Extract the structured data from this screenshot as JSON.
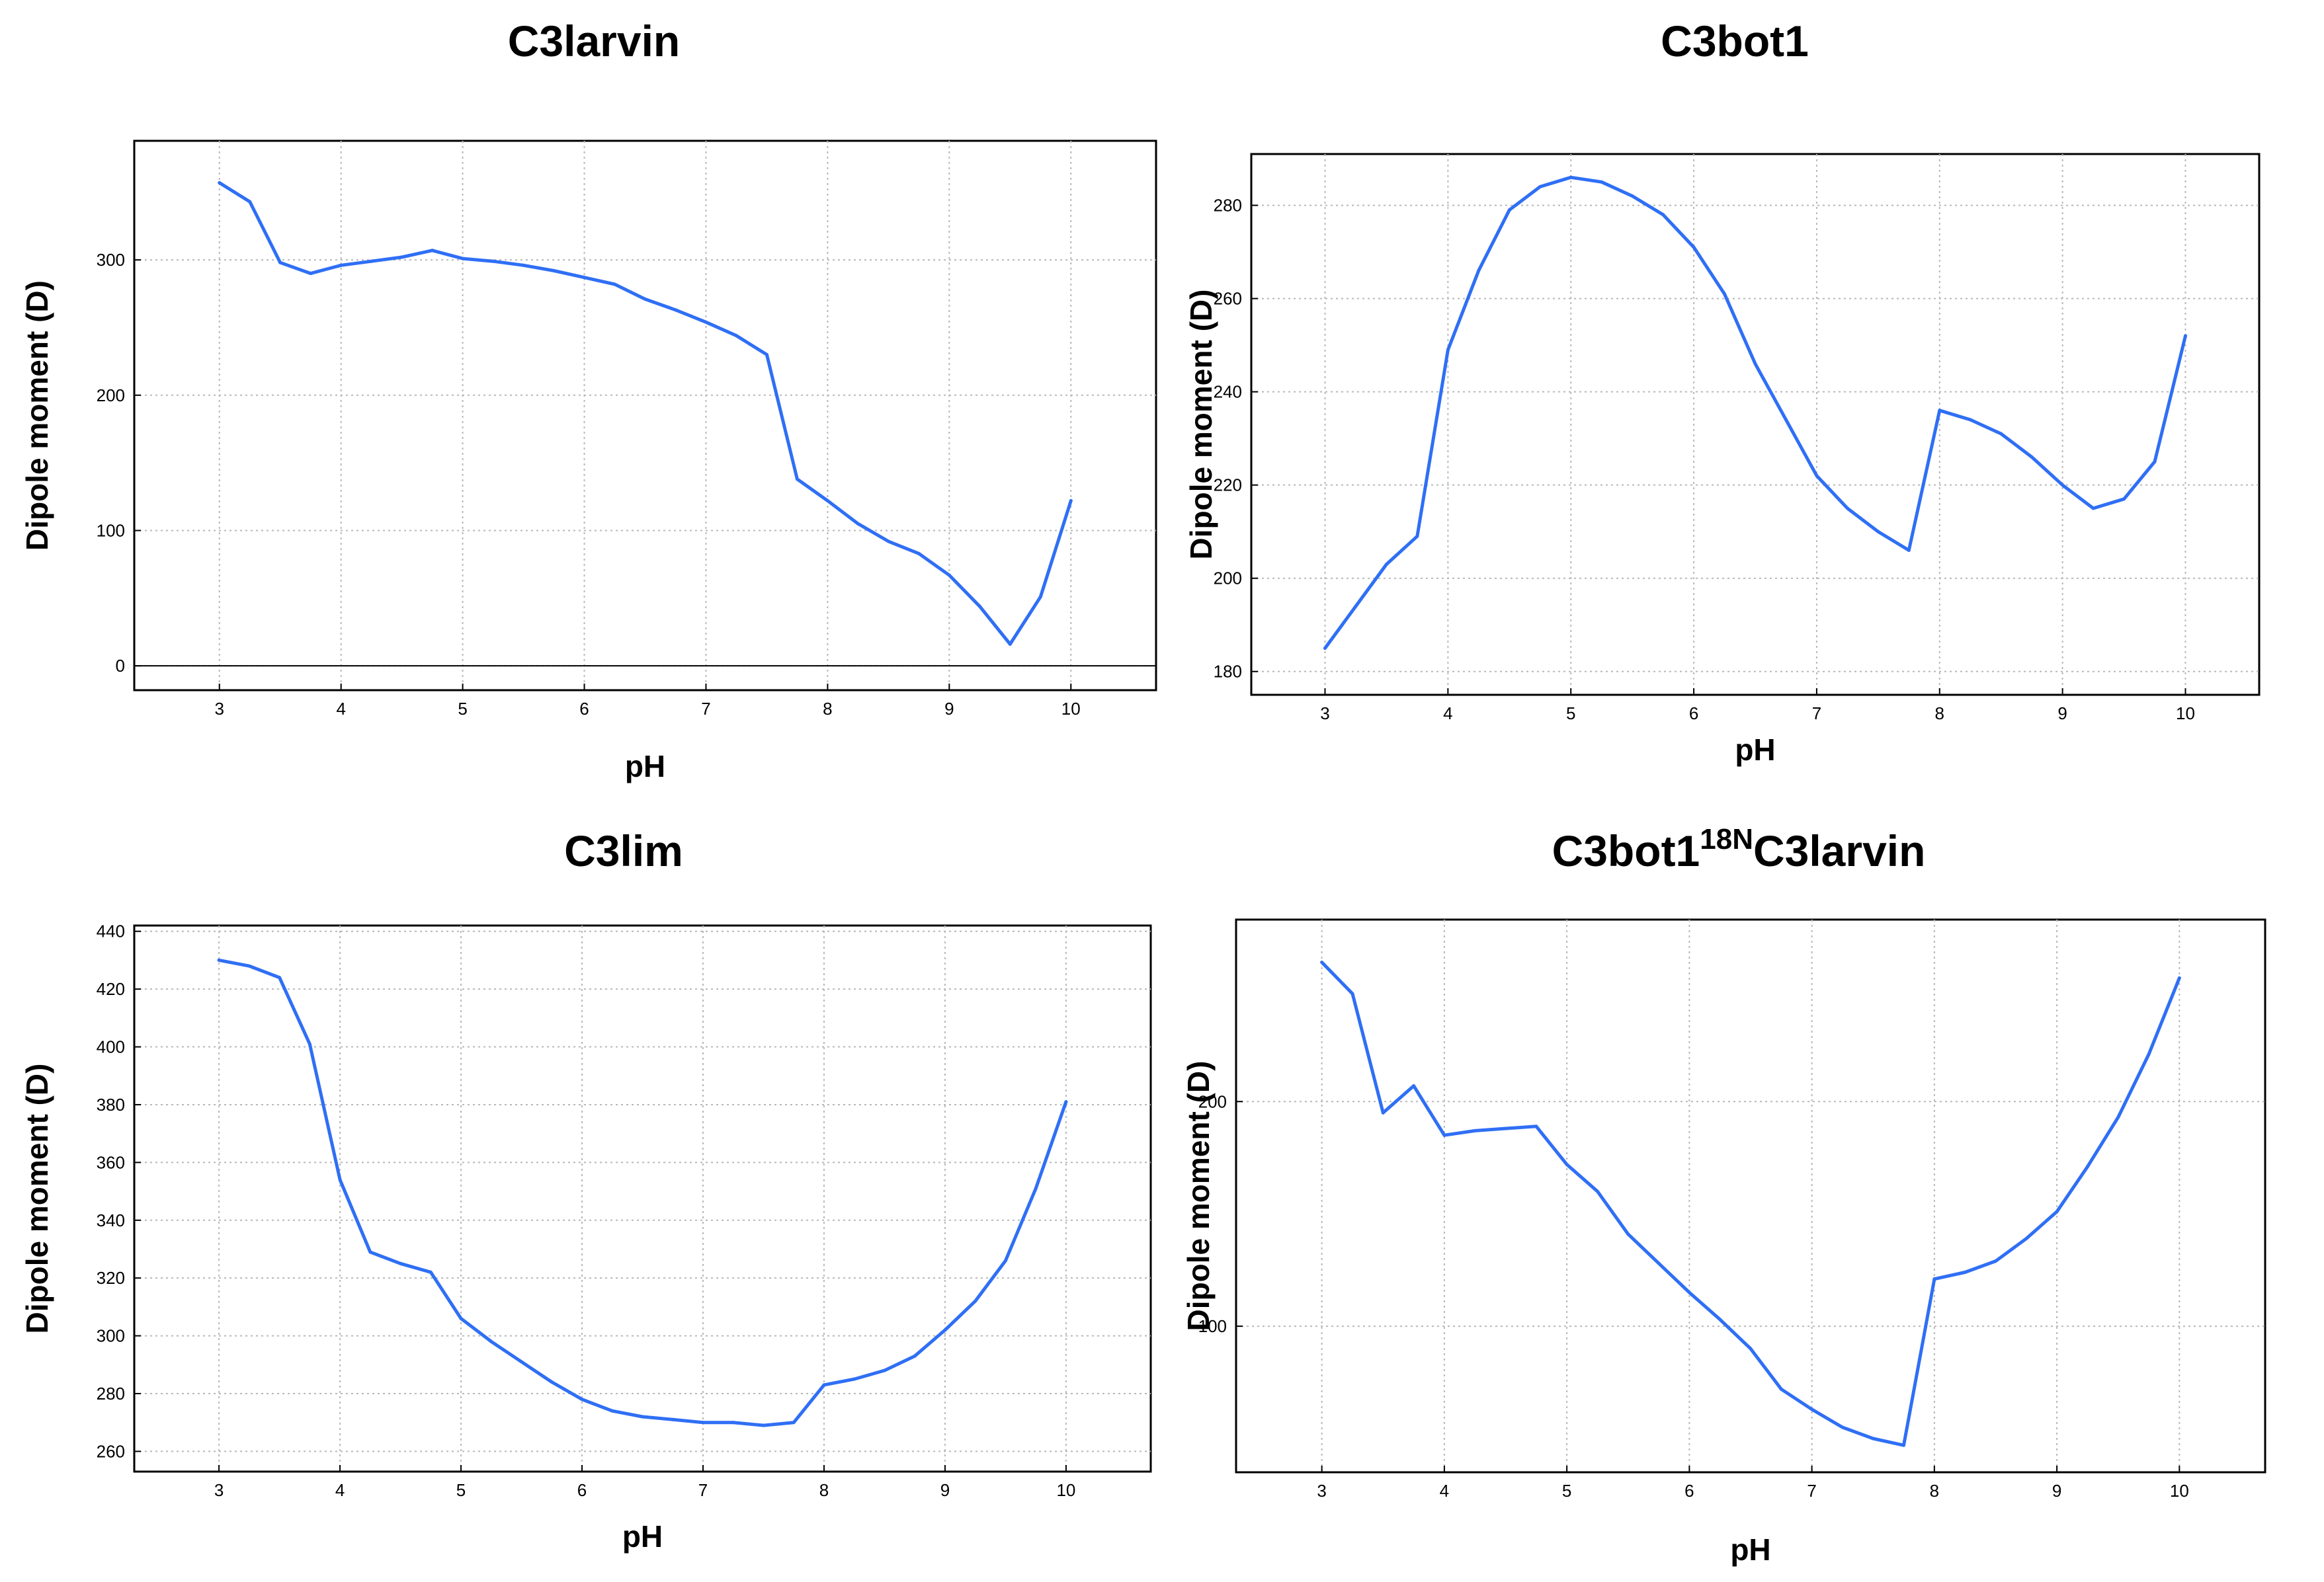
{
  "chart_data": [
    {
      "type": "line",
      "title": "C3larvin",
      "title_sup": "",
      "title_suffix": "",
      "xlabel": "pH",
      "ylabel": "Dipole moment (D)",
      "xlim": [
        2.3,
        10.7
      ],
      "ylim": [
        -18,
        388
      ],
      "xticks": [
        3,
        4,
        5,
        6,
        7,
        8,
        9,
        10
      ],
      "yticks": [
        0,
        100,
        200,
        300
      ],
      "zero_line": true,
      "grid": true,
      "line_color": "#2f6ff5",
      "series": [
        {
          "x": [
            3,
            3.25,
            3.5,
            3.75,
            4,
            4.25,
            4.5,
            4.75,
            5,
            5.25,
            5.5,
            5.75,
            6,
            6.25,
            6.5,
            6.75,
            7,
            7.25,
            7.5,
            7.75,
            8,
            8.25,
            8.5,
            8.75,
            9,
            9.25,
            9.5,
            9.75,
            10
          ],
          "y": [
            357,
            343,
            298,
            290,
            296,
            299,
            302,
            307,
            301,
            299,
            296,
            292,
            287,
            282,
            271,
            263,
            254,
            244,
            230,
            138,
            122,
            105,
            92,
            83,
            67,
            44,
            16,
            51,
            122
          ]
        }
      ]
    },
    {
      "type": "line",
      "title": "C3bot1",
      "title_sup": "",
      "title_suffix": "",
      "xlabel": "pH",
      "ylabel": "Dipole moment (D)",
      "xlim": [
        2.4,
        10.6
      ],
      "ylim": [
        175,
        291
      ],
      "xticks": [
        3,
        4,
        5,
        6,
        7,
        8,
        9,
        10
      ],
      "yticks": [
        180,
        200,
        220,
        240,
        260,
        280
      ],
      "zero_line": false,
      "grid": true,
      "line_color": "#2f6ff5",
      "series": [
        {
          "x": [
            3,
            3.25,
            3.5,
            3.75,
            4,
            4.25,
            4.5,
            4.75,
            5,
            5.25,
            5.5,
            5.75,
            6,
            6.25,
            6.5,
            6.75,
            7,
            7.25,
            7.5,
            7.75,
            8,
            8.25,
            8.5,
            8.75,
            9,
            9.25,
            9.5,
            9.75,
            10
          ],
          "y": [
            185,
            194,
            203,
            209,
            249,
            266,
            279,
            284,
            286,
            285,
            282,
            278,
            271,
            261,
            246,
            234,
            222,
            215,
            210,
            206,
            236,
            234,
            231,
            226,
            220,
            215,
            217,
            225,
            252
          ]
        }
      ]
    },
    {
      "type": "line",
      "title": "C3lim",
      "title_sup": "",
      "title_suffix": "",
      "xlabel": "pH",
      "ylabel": "Dipole moment (D)",
      "xlim": [
        2.3,
        10.7
      ],
      "ylim": [
        253,
        442
      ],
      "xticks": [
        3,
        4,
        5,
        6,
        7,
        8,
        9,
        10
      ],
      "yticks": [
        260,
        280,
        300,
        320,
        340,
        360,
        380,
        400,
        420,
        440
      ],
      "zero_line": false,
      "grid": true,
      "line_color": "#2f6ff5",
      "series": [
        {
          "x": [
            3,
            3.25,
            3.5,
            3.75,
            4,
            4.25,
            4.5,
            4.75,
            5,
            5.25,
            5.5,
            5.75,
            6,
            6.25,
            6.5,
            6.75,
            7,
            7.25,
            7.5,
            7.75,
            8,
            8.25,
            8.5,
            8.75,
            9,
            9.25,
            9.5,
            9.75,
            10
          ],
          "y": [
            430,
            428,
            424,
            401,
            354,
            329,
            325,
            322,
            306,
            298,
            291,
            284,
            278,
            274,
            272,
            271,
            270,
            270,
            269,
            270,
            283,
            285,
            288,
            293,
            302,
            312,
            326,
            351,
            381
          ]
        }
      ]
    },
    {
      "type": "line",
      "title": "C3bot1",
      "title_sup": "18N",
      "title_suffix": "C3larvin",
      "xlabel": "pH",
      "ylabel": "Dipole moment (D)",
      "xlim": [
        2.3,
        10.7
      ],
      "ylim": [
        35,
        281
      ],
      "xticks": [
        3,
        4,
        5,
        6,
        7,
        8,
        9,
        10
      ],
      "yticks": [
        100,
        200
      ],
      "zero_line": false,
      "grid": true,
      "line_color": "#2f6ff5",
      "series": [
        {
          "x": [
            3,
            3.25,
            3.5,
            3.75,
            4,
            4.25,
            4.5,
            4.75,
            5,
            5.25,
            5.5,
            5.75,
            6,
            6.25,
            6.5,
            6.75,
            7,
            7.25,
            7.5,
            7.75,
            8,
            8.25,
            8.5,
            8.75,
            9,
            9.25,
            9.5,
            9.75,
            10
          ],
          "y": [
            262,
            248,
            195,
            207,
            185,
            187,
            188,
            189,
            172,
            160,
            141,
            128,
            115,
            103,
            90,
            72,
            63,
            55,
            50,
            47,
            121,
            124,
            129,
            139,
            151,
            171,
            193,
            221,
            255
          ]
        }
      ]
    }
  ]
}
